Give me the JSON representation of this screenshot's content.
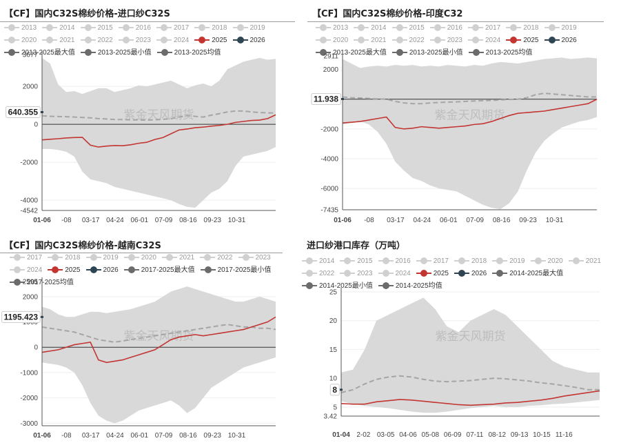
{
  "watermark": "紫金天风期货",
  "chart_data": [
    {
      "type": "area",
      "title": "【CF】国内C32S棉纱价格-进口纱C32S",
      "legend": [
        "2013",
        "2014",
        "2015",
        "2016",
        "2017",
        "2018",
        "2019",
        "2020",
        "2021",
        "2022",
        "2023",
        "2024",
        "2025",
        "2026",
        "2013-2025最大值",
        "2013-2025最小值",
        "2013-2025均值"
      ],
      "active_legend": [
        "2025",
        "2026",
        "2013-2025最大值",
        "2013-2025最小值",
        "2013-2025均值"
      ],
      "x_labels": [
        "01-06",
        "-08",
        "03-17",
        "04-24",
        "06-01",
        "07-09",
        "08-16",
        "09-23",
        "10-31"
      ],
      "ylim": [
        -4542,
        3677
      ],
      "y_ticks": [
        2000,
        0,
        -2000,
        -4000
      ],
      "y_tick_labels": [
        "2000",
        "0",
        "-2000",
        "-4000"
      ],
      "ymin_label": "-4542",
      "ymax_label": "3677",
      "start_label": "640.355",
      "start_value": 640.355,
      "band_max": [
        3500,
        3200,
        2100,
        1700,
        1750,
        1600,
        1750,
        1900,
        1900,
        1700,
        1800,
        1900,
        2050,
        2000,
        2100,
        2200,
        2300,
        2100,
        1900,
        2050,
        2150,
        2000,
        2300,
        2900,
        3100,
        3300,
        3400,
        3500,
        3400,
        3450
      ],
      "band_min": [
        -1300,
        -1300,
        -1350,
        -1450,
        -1700,
        -2500,
        -2900,
        -3000,
        -3100,
        -3300,
        -3400,
        -3500,
        -3600,
        -3700,
        -3800,
        -3900,
        -4000,
        -4200,
        -4350,
        -4400,
        -4000,
        -3600,
        -3400,
        -3000,
        -2200,
        -1700,
        -1600,
        -1500,
        -1400,
        -1200
      ],
      "mean": [
        450,
        420,
        410,
        400,
        380,
        360,
        340,
        300,
        280,
        250,
        250,
        230,
        230,
        220,
        240,
        260,
        300,
        380,
        460,
        420,
        380,
        480,
        560,
        650,
        700,
        700,
        650,
        620,
        600,
        600
      ],
      "series_2025": [
        -820,
        -790,
        -760,
        -720,
        -700,
        -690,
        -1100,
        -1200,
        -1150,
        -1120,
        -1130,
        -1080,
        -1000,
        -950,
        -800,
        -700,
        -500,
        -300,
        -250,
        -180,
        -150,
        -100,
        -60,
        0,
        100,
        150,
        200,
        220,
        300,
        500
      ]
    },
    {
      "type": "area",
      "title": "【CF】国内C32S棉纱价格-印度C32",
      "legend": [
        "2013",
        "2014",
        "2015",
        "2016",
        "2017",
        "2018",
        "2019",
        "2020",
        "2021",
        "2022",
        "2023",
        "2024",
        "2025",
        "2026",
        "2013-2025最大值",
        "2013-2025最小值",
        "2013-2025均值"
      ],
      "active_legend": [
        "2025",
        "2026",
        "2013-2025最大值",
        "2013-2025最小值",
        "2013-2025均值"
      ],
      "x_labels": [
        "01-06",
        "-08",
        "03-17",
        "04-24",
        "06-01",
        "07-09",
        "08-16",
        "09-23",
        "10-31"
      ],
      "ylim": [
        -7435,
        2911
      ],
      "y_ticks": [
        2000,
        0,
        -2000,
        -4000,
        -6000
      ],
      "y_tick_labels": [
        "2000",
        "0",
        "-2000",
        "-4000",
        "-6000"
      ],
      "ymin_label": "-7435",
      "ymax_label": "2911",
      "start_label": "11.938",
      "start_value": 11.938,
      "band_max": [
        2700,
        2400,
        2100,
        2200,
        2250,
        2200,
        2300,
        2250,
        2300,
        2200,
        2250,
        2200,
        2300,
        2250,
        2200,
        2300,
        2250,
        2400,
        2500,
        2450,
        2400,
        2500,
        2600,
        2700,
        2750,
        2800,
        2700,
        2750,
        2800,
        2750
      ],
      "band_min": [
        -1700,
        -1600,
        -1500,
        -1700,
        -2200,
        -3000,
        -4200,
        -4800,
        -5300,
        -5500,
        -5800,
        -6000,
        -6100,
        -6200,
        -6500,
        -6800,
        -7100,
        -7300,
        -7400,
        -7000,
        -6200,
        -4800,
        -3600,
        -2800,
        -2300,
        -1900,
        -1700,
        -1500,
        -1400,
        -1200
      ],
      "mean": [
        150,
        100,
        80,
        50,
        20,
        0,
        -150,
        -250,
        -300,
        -300,
        -250,
        -220,
        -200,
        -180,
        -150,
        -120,
        -100,
        -80,
        -50,
        -20,
        0,
        100,
        300,
        400,
        350,
        300,
        250,
        200,
        150,
        150
      ],
      "series_2025": [
        -1600,
        -1550,
        -1500,
        -1400,
        -1300,
        -1200,
        -1900,
        -2000,
        -1950,
        -1850,
        -1900,
        -1950,
        -1900,
        -1850,
        -1800,
        -1700,
        -1650,
        -1500,
        -1300,
        -1100,
        -950,
        -900,
        -850,
        -800,
        -700,
        -600,
        -500,
        -400,
        -300,
        0
      ]
    },
    {
      "type": "area",
      "title": "【CF】国内C32S棉纱价格-越南C32S",
      "legend": [
        "2017",
        "2018",
        "2019",
        "2020",
        "2021",
        "2022",
        "2023",
        "2024",
        "2025",
        "2026",
        "2017-2025最大值",
        "2017-2025最小值",
        "2017-2025均值"
      ],
      "active_legend": [
        "2025",
        "2026",
        "2017-2025最大值",
        "2017-2025最小值",
        "2017-2025均值"
      ],
      "x_labels": [
        "01-06",
        "-08",
        "03-17",
        "04-24",
        "06-01",
        "07-09",
        "08-16",
        "09-23",
        "10-31"
      ],
      "ylim": [
        -3100,
        2595
      ],
      "y_ticks": [
        2000,
        1000,
        0,
        -1000,
        -2000,
        -3000
      ],
      "y_tick_labels": [
        "2000",
        "1000",
        "0",
        "-1000",
        "-2000",
        "-3000"
      ],
      "ymin_label": "",
      "ymax_label": "2595",
      "start_label": "1195.423",
      "start_value": 1195.423,
      "band_max": [
        1600,
        1500,
        1300,
        1200,
        1200,
        1300,
        1400,
        1400,
        1350,
        1400,
        1450,
        1500,
        1600,
        1700,
        1800,
        2000,
        2200,
        2300,
        2400,
        2300,
        2200,
        2100,
        2000,
        1900,
        1800,
        1800,
        1900,
        2000,
        1900,
        1800
      ],
      "band_min": [
        -600,
        -650,
        -700,
        -800,
        -1000,
        -1500,
        -2200,
        -2700,
        -2900,
        -3000,
        -2900,
        -2700,
        -2500,
        -2400,
        -2300,
        -2200,
        -2100,
        -2300,
        -2600,
        -2400,
        -2000,
        -1600,
        -1400,
        -1200,
        -1000,
        -800,
        -700,
        -600,
        -500,
        -400
      ],
      "mean": [
        800,
        750,
        700,
        650,
        600,
        500,
        400,
        300,
        250,
        200,
        250,
        300,
        350,
        400,
        450,
        500,
        550,
        600,
        650,
        700,
        750,
        800,
        850,
        900,
        850,
        800,
        800,
        750,
        750,
        700
      ],
      "series_2025": [
        -200,
        -150,
        -100,
        0,
        100,
        150,
        200,
        -500,
        -600,
        -550,
        -500,
        -400,
        -300,
        -200,
        -100,
        100,
        300,
        400,
        450,
        500,
        450,
        500,
        550,
        600,
        650,
        700,
        800,
        900,
        1000,
        1195
      ]
    },
    {
      "type": "area",
      "title": "进口纱港口库存（万吨）",
      "legend": [
        "2014",
        "2015",
        "2016",
        "2017",
        "2018",
        "2019",
        "2020",
        "2021",
        "2022",
        "2023",
        "2024",
        "2025",
        "2026",
        "2014-2025最大值",
        "2014-2025最小值",
        "2014-2025均值"
      ],
      "active_legend": [
        "2025",
        "2026",
        "2014-2025最大值",
        "2014-2025最小值",
        "2014-2025均值"
      ],
      "x_labels": [
        "01-04",
        "2-02",
        "03-05",
        "04-06",
        "05-08",
        "06-09",
        "07-11",
        "08-12",
        "09-13",
        "10-15",
        "11-16"
      ],
      "ylim": [
        3.42,
        25
      ],
      "y_ticks": [
        25,
        20,
        15,
        10,
        5
      ],
      "y_tick_labels": [
        "25",
        "20",
        "15",
        "10",
        "5"
      ],
      "ymin_label": "3.42",
      "ymax_label": "",
      "start_label": "8",
      "start_value": 8,
      "band_max": [
        11,
        11.5,
        15,
        20,
        21,
        22,
        23,
        24,
        22,
        19,
        18,
        20,
        21,
        22,
        21,
        19,
        17,
        15,
        13,
        12,
        11.5,
        11,
        11
      ],
      "band_min": [
        6,
        5.5,
        5.2,
        5.0,
        4.8,
        4.5,
        4.2,
        4.0,
        4.0,
        4.2,
        4.5,
        4.8,
        5.0,
        5.2,
        5.0,
        5.0,
        5.2,
        5.3,
        5.5,
        5.6,
        5.8,
        6.0,
        6.2
      ],
      "mean": [
        7.5,
        8,
        9,
        9.8,
        10.2,
        10.4,
        10.2,
        9.8,
        9.5,
        9.4,
        9.5,
        9.6,
        9.8,
        10,
        9.9,
        9.7,
        9.5,
        9.2,
        9.0,
        8.7,
        8.4,
        8.0,
        8.0
      ],
      "series_2025": [
        5.6,
        5.5,
        5.5,
        5.9,
        6.1,
        6.3,
        6.2,
        6.0,
        5.8,
        5.6,
        5.4,
        5.3,
        5.4,
        5.5,
        5.7,
        5.8,
        6.0,
        6.2,
        6.5,
        6.9,
        7.2,
        7.5,
        7.8
      ]
    }
  ]
}
